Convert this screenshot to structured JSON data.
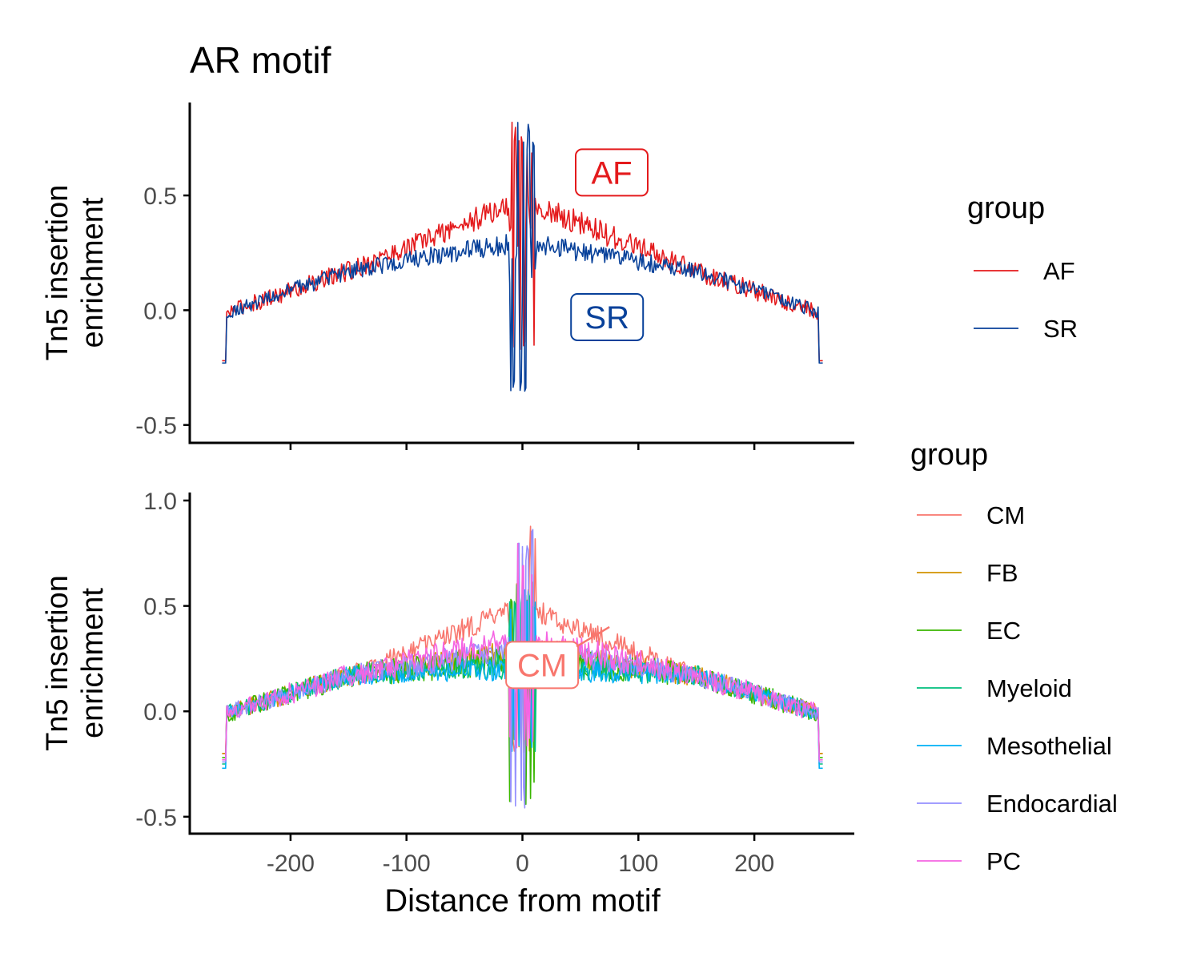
{
  "title": "AR motif",
  "colors": {
    "AF": "#E41A1C",
    "SR": "#08419A",
    "CM": "#F8766D",
    "FB": "#D39200",
    "EC": "#39B600",
    "Myeloid": "#00BF7D",
    "Mesothelial": "#00B0F6",
    "Endocardial": "#9590FF",
    "PC": "#F564E3"
  },
  "chart_data": [
    {
      "type": "line",
      "panel": "top",
      "ylabel": "Tn5 insertion\nenrichment",
      "xlim": [
        -260,
        260
      ],
      "ylim": [
        -0.55,
        0.87
      ],
      "yticks": [
        -0.5,
        0.0,
        0.5
      ],
      "ytick_labels": [
        "-0.5",
        "0.0",
        "0.5"
      ],
      "xticks": [
        -200,
        -100,
        0,
        100,
        200
      ],
      "legend": {
        "title": "group",
        "entries": [
          "AF",
          "SR"
        ],
        "placement": "right"
      },
      "annotations": [
        {
          "text": "AF",
          "x": 77,
          "y": 0.6
        },
        {
          "text": "SR",
          "x": 73,
          "y": -0.03
        }
      ],
      "series": [
        {
          "name": "AF",
          "profile": {
            "center": 0.48,
            "edge": 0.0,
            "end_value": -0.22,
            "noise": 0.035,
            "center_peak": 0.85
          }
        },
        {
          "name": "SR",
          "profile": {
            "center": 0.3,
            "edge": 0.0,
            "end_value": -0.23,
            "noise": 0.03,
            "center_peak": 0.85,
            "center_trough": -0.46
          }
        }
      ]
    },
    {
      "type": "line",
      "panel": "bottom",
      "xlabel": "Distance from motif",
      "ylabel": "Tn5 insertion\nenrichment",
      "xlim": [
        -260,
        260
      ],
      "ylim": [
        -0.55,
        1.0
      ],
      "yticks": [
        -0.5,
        0.0,
        0.5,
        1.0
      ],
      "ytick_labels": [
        "-0.5",
        "0.0",
        "0.5",
        "1.0"
      ],
      "xticks": [
        -200,
        -100,
        0,
        100,
        200
      ],
      "xtick_labels": [
        "-200",
        "-100",
        "0",
        "100",
        "200"
      ],
      "legend": {
        "title": "group",
        "entries": [
          "CM",
          "FB",
          "EC",
          "Myeloid",
          "Mesothelial",
          "Endocardial",
          "PC"
        ],
        "placement": "right"
      },
      "annotations": [
        {
          "text": "CM",
          "x": 17,
          "y": 0.22
        }
      ],
      "series": [
        {
          "name": "CM",
          "profile": {
            "center": 0.5,
            "edge": 0.0,
            "end_value": -0.2,
            "noise": 0.035,
            "center_peak": 0.9
          }
        },
        {
          "name": "FB",
          "profile": {
            "center": 0.28,
            "edge": 0.0,
            "end_value": -0.2,
            "noise": 0.04,
            "center_peak": 0.7
          }
        },
        {
          "name": "EC",
          "profile": {
            "center": 0.25,
            "edge": 0.0,
            "end_value": -0.22,
            "noise": 0.045,
            "center_peak": 0.6,
            "center_trough": -0.47
          }
        },
        {
          "name": "Myeloid",
          "profile": {
            "center": 0.22,
            "edge": 0.0,
            "end_value": -0.25,
            "noise": 0.04,
            "center_peak": 0.6
          }
        },
        {
          "name": "Mesothelial",
          "profile": {
            "center": 0.2,
            "edge": 0.0,
            "end_value": -0.27,
            "noise": 0.035,
            "center_peak": 0.6
          }
        },
        {
          "name": "Endocardial",
          "profile": {
            "center": 0.3,
            "edge": 0.0,
            "end_value": -0.24,
            "noise": 0.04,
            "center_peak": 0.88,
            "center_trough": -0.46
          }
        },
        {
          "name": "PC",
          "profile": {
            "center": 0.35,
            "edge": 0.0,
            "end_value": -0.23,
            "noise": 0.045,
            "center_peak": 0.8
          }
        }
      ]
    }
  ]
}
